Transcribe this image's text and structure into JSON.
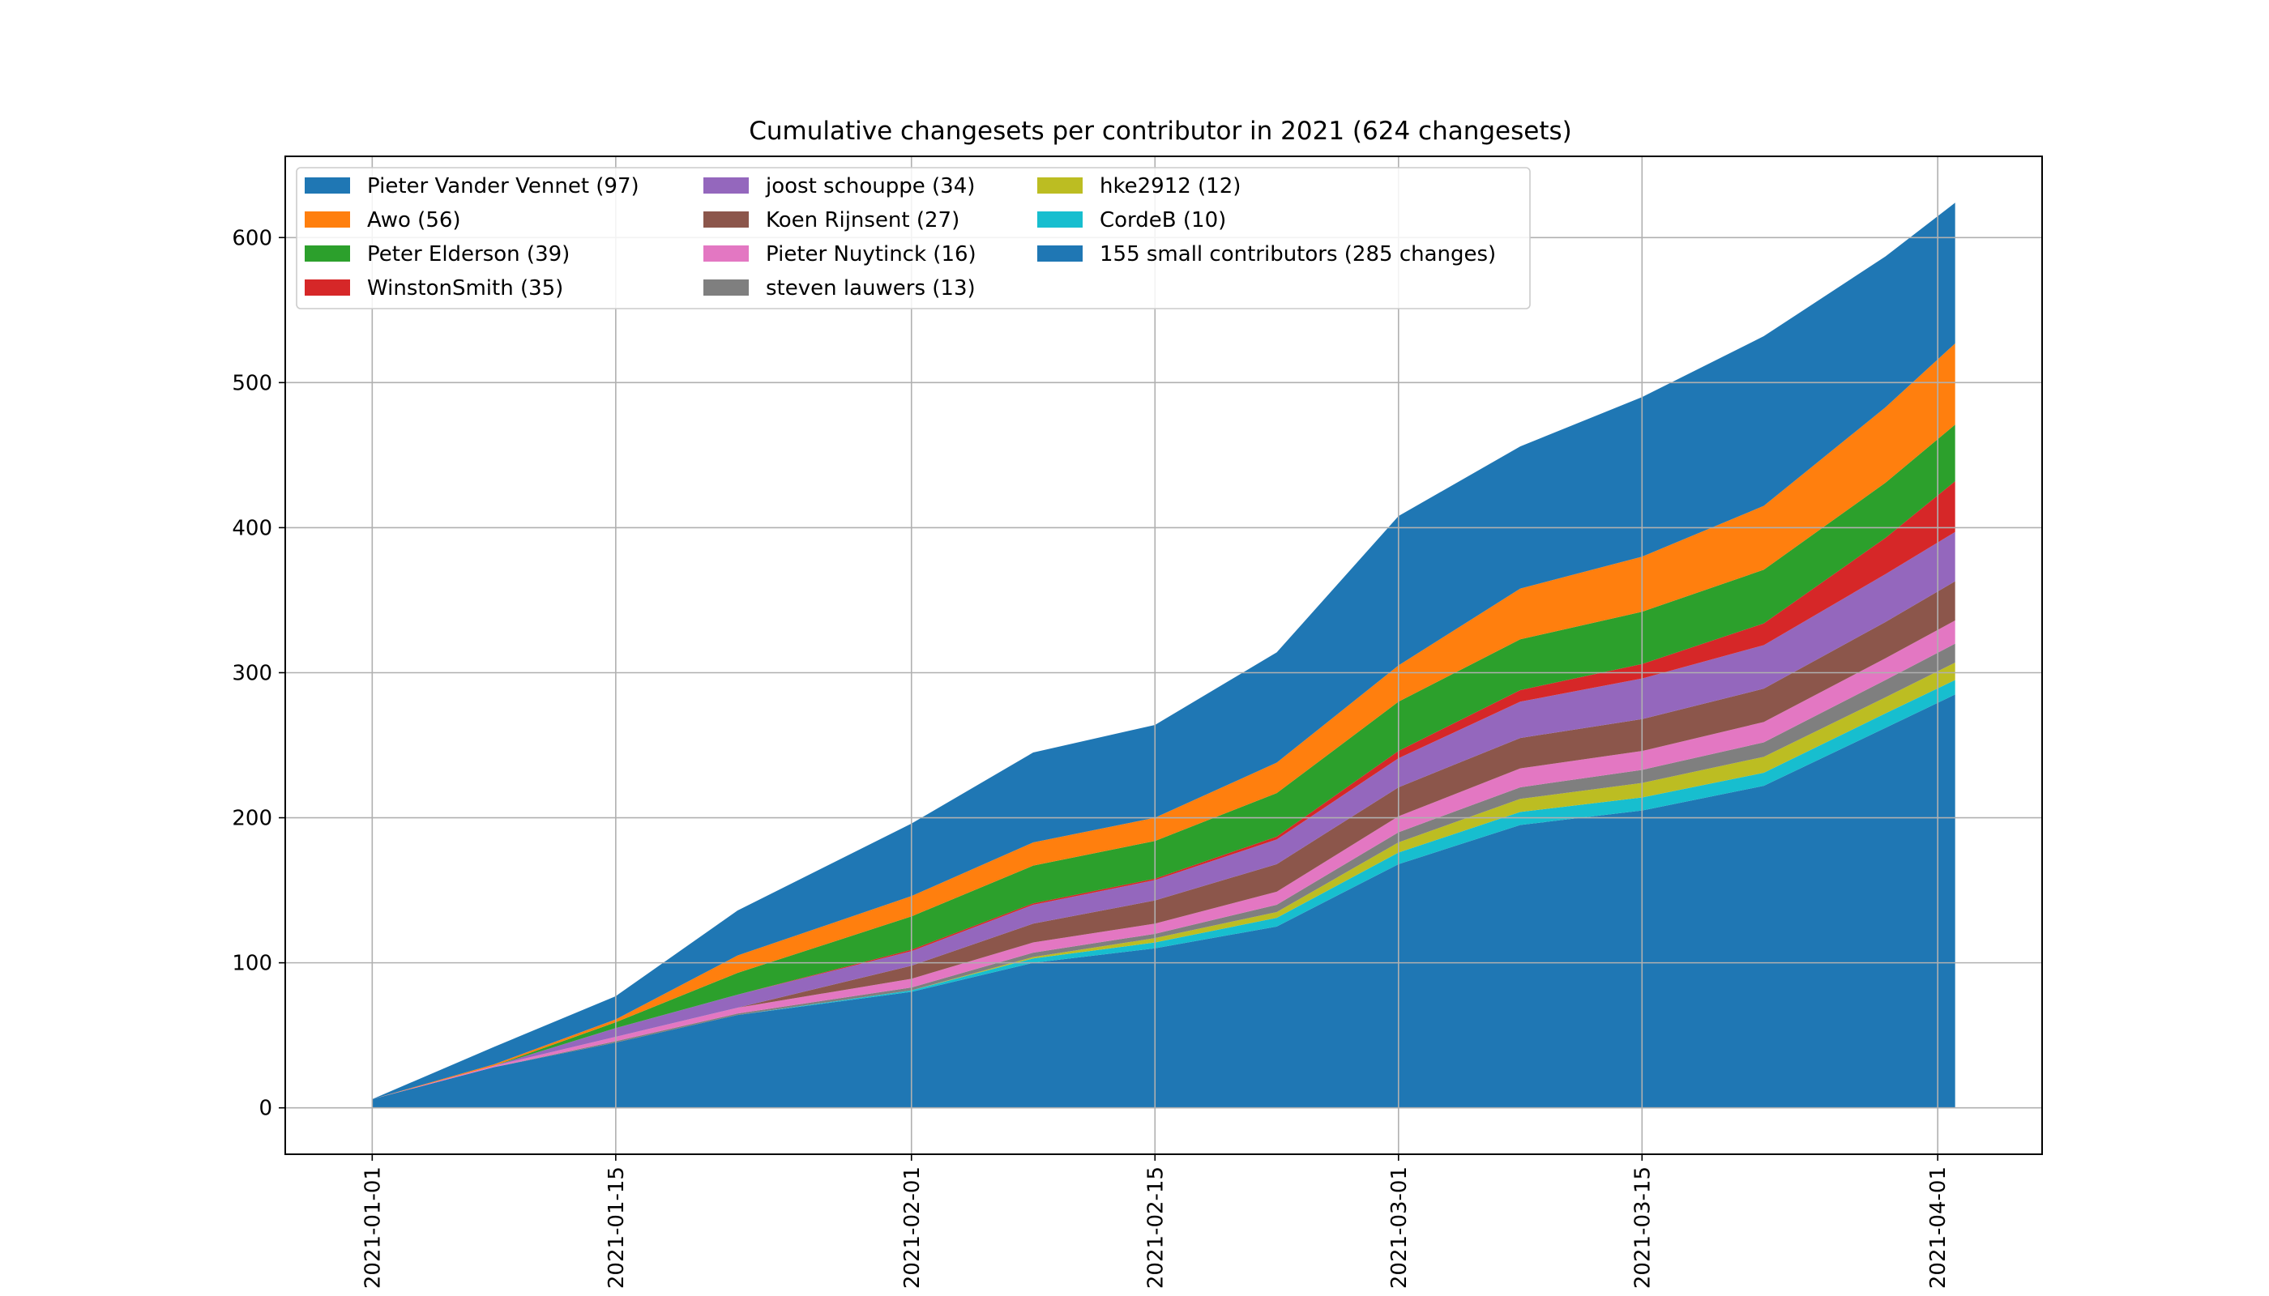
{
  "chart_data": {
    "type": "area",
    "stacked": true,
    "title": "Cumulative changesets per contributor in 2021 (624 changesets)",
    "xlabel": "",
    "ylabel": "",
    "x_ticks": [
      "2021-01-01",
      "2021-01-15",
      "2021-02-01",
      "2021-02-15",
      "2021-03-01",
      "2021-03-15",
      "2021-04-01"
    ],
    "y_ticks": [
      "0",
      "100",
      "200",
      "300",
      "400",
      "500",
      "600"
    ],
    "xlim": [
      "2020-12-27",
      "2021-04-07"
    ],
    "ylim": [
      -32,
      656
    ],
    "grid": true,
    "legend_position": "upper-left",
    "legend_columns": 3,
    "dates": [
      "2021-01-01",
      "2021-01-08",
      "2021-01-15",
      "2021-01-22",
      "2021-02-01",
      "2021-02-08",
      "2021-02-15",
      "2021-02-22",
      "2021-03-01",
      "2021-03-08",
      "2021-03-15",
      "2021-03-22",
      "2021-03-29",
      "2021-04-02"
    ],
    "series": [
      {
        "name": "155 small contributors (285 changes)",
        "legend_label": "155 small contributors (285 changes)",
        "color": "#1f77b4",
        "values": [
          6,
          28,
          45,
          64,
          80,
          100,
          110,
          125,
          168,
          195,
          205,
          222,
          262,
          285
        ]
      },
      {
        "name": "CordeB",
        "legend_label": "CordeB (10)",
        "color": "#17becf",
        "values": [
          0,
          0,
          0,
          0,
          1,
          3,
          4,
          6,
          8,
          9,
          9,
          9,
          10,
          10
        ]
      },
      {
        "name": "hke2912",
        "legend_label": "hke2912 (12)",
        "color": "#bcbd22",
        "values": [
          0,
          0,
          0,
          0,
          0,
          1,
          3,
          4,
          7,
          9,
          10,
          11,
          11,
          12
        ]
      },
      {
        "name": "steven lauwers",
        "legend_label": "steven lauwers (13)",
        "color": "#7f7f7f",
        "values": [
          0,
          0,
          1,
          1,
          2,
          3,
          3,
          5,
          7,
          8,
          9,
          10,
          12,
          13
        ]
      },
      {
        "name": "Pieter Nuytinck",
        "legend_label": "Pieter Nuytinck (16)",
        "color": "#e377c2",
        "values": [
          0,
          1,
          3,
          4,
          6,
          7,
          7,
          9,
          11,
          13,
          13,
          14,
          15,
          16
        ]
      },
      {
        "name": "Koen Rijnsent",
        "legend_label": "Koen Rijnsent (27)",
        "color": "#8c564b",
        "values": [
          0,
          0,
          0,
          0,
          9,
          13,
          16,
          19,
          20,
          21,
          22,
          23,
          25,
          27
        ]
      },
      {
        "name": "joost schouppe",
        "legend_label": "joost schouppe (34)",
        "color": "#9467bd",
        "values": [
          0,
          0,
          6,
          9,
          10,
          13,
          14,
          17,
          20,
          25,
          28,
          30,
          33,
          34
        ]
      },
      {
        "name": "WinstonSmith",
        "legend_label": "WinstonSmith (35)",
        "color": "#d62728",
        "values": [
          0,
          0,
          0,
          0,
          1,
          1,
          1,
          2,
          5,
          8,
          10,
          15,
          25,
          35
        ]
      },
      {
        "name": "Peter Elderson",
        "legend_label": "Peter Elderson (39)",
        "color": "#2ca02c",
        "values": [
          0,
          0,
          4,
          15,
          23,
          26,
          26,
          30,
          34,
          35,
          36,
          37,
          38,
          39
        ]
      },
      {
        "name": "Awo",
        "legend_label": "Awo (56)",
        "color": "#ff7f0e",
        "values": [
          0,
          1,
          2,
          12,
          14,
          16,
          16,
          21,
          25,
          35,
          38,
          44,
          52,
          56
        ]
      },
      {
        "name": "Pieter Vander Vennet",
        "legend_label": "Pieter Vander Vennet (97)",
        "color": "#1f77b4",
        "values": [
          0,
          12,
          16,
          31,
          50,
          62,
          64,
          76,
          103,
          98,
          110,
          117,
          104,
          97
        ]
      }
    ],
    "legend": [
      "Pieter Vander Vennet (97)",
      "Awo (56)",
      "Peter Elderson (39)",
      "WinstonSmith (35)",
      "joost schouppe (34)",
      "Koen Rijnsent (27)",
      "Pieter Nuytinck (16)",
      "steven lauwers (13)",
      "hke2912 (12)",
      "CordeB (10)",
      "155 small contributors (285 changes)"
    ]
  }
}
